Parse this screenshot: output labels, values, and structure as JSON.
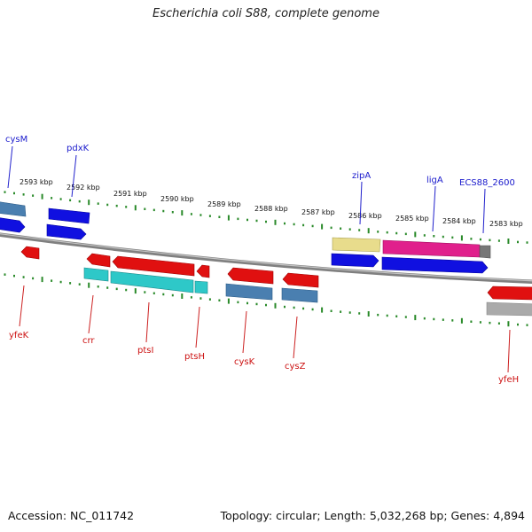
{
  "title": "Escherichia coli S88, complete genome",
  "accession": "Accession: NC_011742",
  "summary": "Topology: circular; Length: 5,032,268 bp; Genes: 4,894",
  "kbp_labels": [
    "2593 kbp",
    "2592 kbp",
    "2591 kbp",
    "2590 kbp",
    "2589 kbp",
    "2588 kbp",
    "2587 kbp",
    "2586 kbp",
    "2585 kbp",
    "2584 kbp",
    "2583 kbp"
  ],
  "top_genes": [
    "cysM",
    "pdxK",
    "zipA",
    "ligA",
    "ECS88_2600"
  ],
  "bottom_genes": [
    "yfeK",
    "crr",
    "ptsI",
    "ptsH",
    "cysK",
    "cysZ",
    "yfeH"
  ],
  "colors": {
    "forward_blue": "#1010e0",
    "reverse_red": "#e01010",
    "teal": "#2ec8c8",
    "steel_blue": "#4a7fb0",
    "yellow": "#e8dc8c",
    "magenta": "#e0208c",
    "gray": "#aaaaaa",
    "backbone": "#888888",
    "tick_green": "#2a8a2a"
  }
}
